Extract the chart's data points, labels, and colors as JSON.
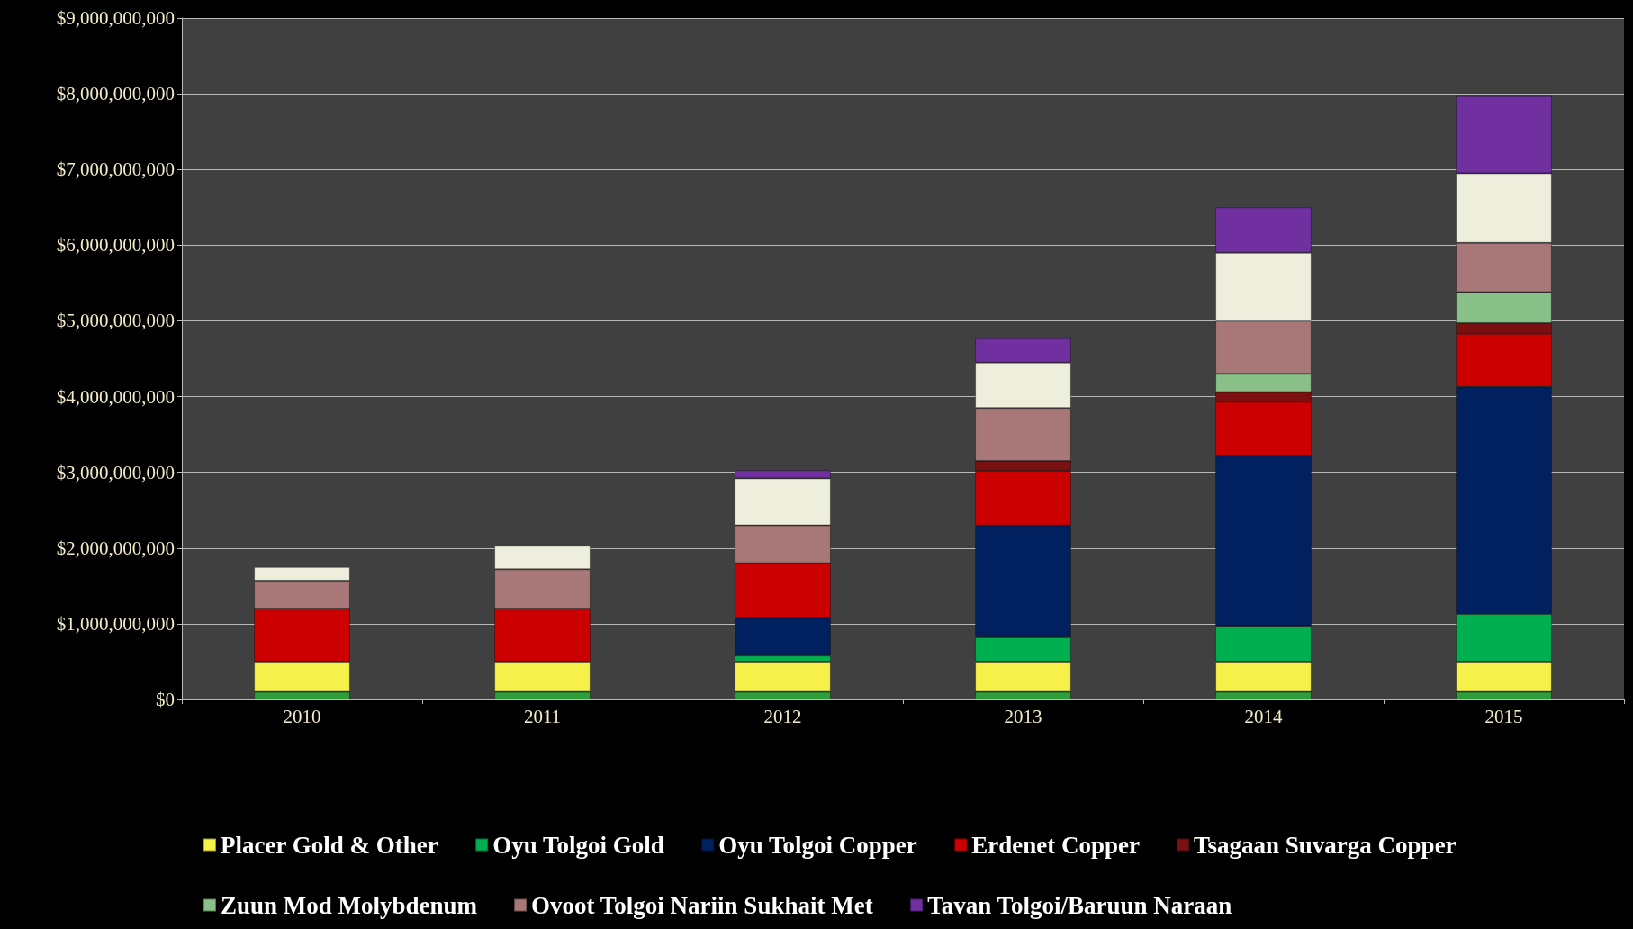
{
  "chart_data": {
    "type": "bar",
    "stacked": true,
    "categories": [
      "2010",
      "2011",
      "2012",
      "2013",
      "2014",
      "2015"
    ],
    "series": [
      {
        "name": null,
        "color": "#2e9e3a",
        "values": [
          100000000,
          100000000,
          100000000,
          100000000,
          100000000,
          100000000
        ]
      },
      {
        "name": "Placer Gold & Other",
        "color": "#f5f04a",
        "values": [
          400000000,
          400000000,
          400000000,
          400000000,
          400000000,
          400000000
        ]
      },
      {
        "name": "Oyu Tolgoi Gold",
        "color": "#00b050",
        "values": [
          0,
          0,
          80000000,
          320000000,
          470000000,
          630000000
        ]
      },
      {
        "name": "Oyu Tolgoi Copper",
        "color": "#002060",
        "values": [
          0,
          0,
          500000000,
          1480000000,
          2250000000,
          3000000000
        ]
      },
      {
        "name": "Erdenet Copper",
        "color": "#cc0000",
        "values": [
          700000000,
          700000000,
          720000000,
          720000000,
          710000000,
          700000000
        ]
      },
      {
        "name": "Tsagaan Suvarga Copper",
        "color": "#7a1010",
        "values": [
          0,
          0,
          0,
          130000000,
          130000000,
          140000000
        ]
      },
      {
        "name": "Zuun Mod Molybdenum",
        "color": "#88c088",
        "values": [
          0,
          0,
          0,
          0,
          240000000,
          410000000
        ]
      },
      {
        "name": "Ovoot Tolgoi Nariin Sukhait Met",
        "color": "#a87878",
        "values": [
          370000000,
          520000000,
          500000000,
          700000000,
          700000000,
          650000000
        ]
      },
      {
        "name": null,
        "color": "#eeeedd",
        "values": [
          180000000,
          310000000,
          620000000,
          600000000,
          900000000,
          920000000
        ]
      },
      {
        "name": "Tavan Tolgoi/Baruun Naraan",
        "color": "#7030a0",
        "values": [
          0,
          0,
          110000000,
          320000000,
          600000000,
          1020000000
        ]
      }
    ],
    "ylim": [
      0,
      9000000000
    ],
    "yticks": [
      {
        "value": 0,
        "label": "$0"
      },
      {
        "value": 1000000000,
        "label": "$1,000,000,000"
      },
      {
        "value": 2000000000,
        "label": "$2,000,000,000"
      },
      {
        "value": 3000000000,
        "label": "$3,000,000,000"
      },
      {
        "value": 4000000000,
        "label": "$4,000,000,000"
      },
      {
        "value": 5000000000,
        "label": "$5,000,000,000"
      },
      {
        "value": 6000000000,
        "label": "$6,000,000,000"
      },
      {
        "value": 7000000000,
        "label": "$7,000,000,000"
      },
      {
        "value": 8000000000,
        "label": "$8,000,000,000"
      },
      {
        "value": 9000000000,
        "label": "$9,000,000,000"
      }
    ],
    "grid": "y",
    "legend": "bottom"
  }
}
